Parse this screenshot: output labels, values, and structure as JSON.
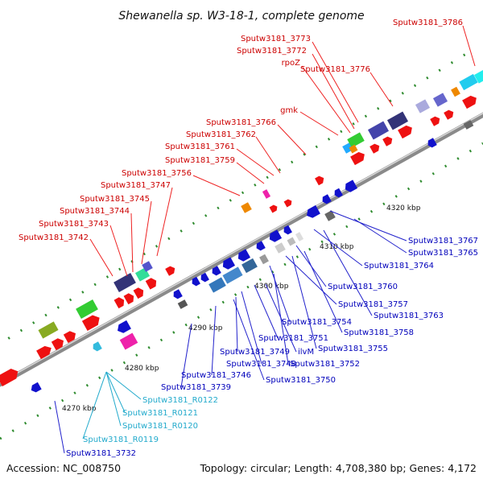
{
  "title": "Shewanella sp. W3-18-1, complete genome",
  "accession": "Accession: NC_008750",
  "topology": "Topology: circular; Length: 4,708,380 bp; Genes: 4,172",
  "colors": {
    "forward_label": "#cc0000",
    "reverse_label": "#0000bb",
    "rna_label": "#22aacc",
    "backbone": "#888888",
    "tick_mark": "#2e8b2e"
  },
  "ticks": [
    "4270 kbp",
    "4280 kbp",
    "4290 kbp",
    "4300 kbp",
    "4310 kbp",
    "4320 kbp"
  ],
  "forward_labels": [
    "Sputw3181_3786",
    "Sputw3181_3773",
    "Sputw3181_3772",
    "rpoZ",
    "Sputw3181_3776",
    "gmk",
    "Sputw3181_3766",
    "Sputw3181_3762",
    "Sputw3181_3761",
    "Sputw3181_3759",
    "Sputw3181_3756",
    "Sputw3181_3747",
    "Sputw3181_3745",
    "Sputw3181_3744",
    "Sputw3181_3743",
    "Sputw3181_3742"
  ],
  "reverse_labels": [
    "Sputw3181_3767",
    "Sputw3181_3765",
    "Sputw3181_3764",
    "Sputw3181_3760",
    "Sputw3181_3757",
    "Sputw3181_3763",
    "Sputw3181_3754",
    "Sputw3181_3758",
    "Sputw3181_3751",
    "Sputw3181_3755",
    "Sputw3181_3749",
    "ilvM",
    "Sputw3181_3748",
    "Sputw3181_3752",
    "Sputw3181_3746",
    "Sputw3181_3750",
    "Sputw3181_3739",
    "Sputw3181_3732"
  ],
  "rna_labels": [
    "Sputw3181_R0122",
    "Sputw3181_R0121",
    "Sputw3181_R0120",
    "Sputw3181_R0119"
  ]
}
